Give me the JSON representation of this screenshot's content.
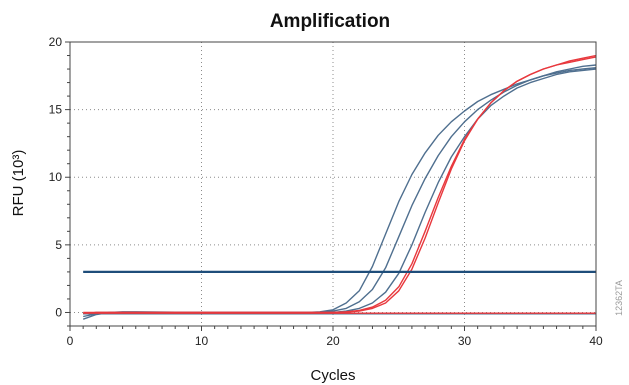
{
  "chart_data": {
    "type": "line",
    "title": "Amplification",
    "xlabel": "Cycles",
    "ylabel": "RFU (10³)",
    "xlim": [
      0,
      40
    ],
    "ylim": [
      -1,
      20
    ],
    "xticks": [
      0,
      10,
      20,
      30,
      40
    ],
    "yticks": [
      0,
      5,
      10,
      15,
      20
    ],
    "grid": "dotted",
    "threshold": 3.0,
    "series": [
      {
        "color": "#4f6f8f",
        "x": [
          1,
          2,
          3,
          4,
          5,
          10,
          15,
          18,
          19,
          20,
          21,
          22,
          23,
          24,
          25,
          26,
          27,
          28,
          29,
          30,
          31,
          32,
          33,
          34,
          35,
          36,
          37,
          38,
          39,
          40
        ],
        "y": [
          -0.5,
          -0.15,
          0.0,
          0.05,
          0.05,
          0.0,
          0.0,
          0.0,
          0.05,
          0.2,
          0.7,
          1.6,
          3.4,
          5.8,
          8.2,
          10.2,
          11.8,
          13.1,
          14.1,
          14.9,
          15.6,
          16.1,
          16.5,
          16.9,
          17.2,
          17.5,
          17.7,
          17.9,
          18.0,
          18.1
        ]
      },
      {
        "color": "#4f6f8f",
        "x": [
          1,
          2,
          3,
          4,
          5,
          10,
          15,
          19,
          20,
          21,
          22,
          23,
          24,
          25,
          26,
          27,
          28,
          29,
          30,
          31,
          32,
          33,
          34,
          35,
          36,
          37,
          38,
          39,
          40
        ],
        "y": [
          -0.3,
          -0.1,
          0.0,
          0.0,
          0.0,
          0.0,
          0.0,
          0.0,
          0.1,
          0.3,
          0.8,
          1.7,
          3.3,
          5.6,
          7.9,
          9.9,
          11.6,
          13.0,
          14.1,
          15.0,
          15.7,
          16.3,
          16.8,
          17.2,
          17.5,
          17.8,
          18.0,
          18.2,
          18.3
        ]
      },
      {
        "color": "#4f6f8f",
        "x": [
          1,
          2,
          3,
          4,
          5,
          10,
          15,
          20,
          21,
          22,
          23,
          24,
          25,
          26,
          27,
          28,
          29,
          30,
          31,
          32,
          33,
          34,
          35,
          36,
          37,
          38,
          39,
          40
        ],
        "y": [
          -0.1,
          0.0,
          0.0,
          0.0,
          0.0,
          0.0,
          0.0,
          0.0,
          0.1,
          0.3,
          0.7,
          1.5,
          2.9,
          5.0,
          7.4,
          9.6,
          11.5,
          13.0,
          14.3,
          15.3,
          16.0,
          16.6,
          17.0,
          17.3,
          17.6,
          17.8,
          17.9,
          18.0
        ]
      },
      {
        "color": "#e8383d",
        "x": [
          1,
          2,
          3,
          4,
          5,
          10,
          15,
          20,
          21,
          22,
          23,
          24,
          25,
          26,
          27,
          28,
          29,
          30,
          31,
          32,
          33,
          34,
          35,
          36,
          37,
          38,
          39,
          40
        ],
        "y": [
          -0.1,
          0.0,
          0.0,
          0.0,
          0.0,
          0.0,
          0.0,
          0.0,
          0.05,
          0.15,
          0.4,
          0.9,
          1.9,
          3.6,
          6.0,
          8.5,
          10.8,
          12.8,
          14.3,
          15.5,
          16.4,
          17.1,
          17.6,
          18.0,
          18.3,
          18.6,
          18.8,
          19.0
        ]
      },
      {
        "color": "#e8383d",
        "x": [
          1,
          2,
          3,
          4,
          5,
          10,
          15,
          20,
          21,
          22,
          23,
          24,
          25,
          26,
          27,
          28,
          29,
          30,
          31,
          32,
          33,
          34,
          35,
          36,
          37,
          38,
          39,
          40
        ],
        "y": [
          0.0,
          0.0,
          0.0,
          0.0,
          0.0,
          0.0,
          0.0,
          0.0,
          0.03,
          0.1,
          0.3,
          0.7,
          1.6,
          3.2,
          5.5,
          8.1,
          10.6,
          12.7,
          14.3,
          15.5,
          16.4,
          17.1,
          17.6,
          18.0,
          18.3,
          18.5,
          18.7,
          18.9
        ]
      },
      {
        "color": "#4f6f8f",
        "x": [
          1,
          40
        ],
        "y": [
          -0.1,
          -0.1
        ]
      },
      {
        "color": "#e8383d",
        "x": [
          1,
          40
        ],
        "y": [
          -0.05,
          -0.05
        ]
      }
    ],
    "colors": {
      "threshold": "#1e4d7a",
      "grid": "#8c8c8c",
      "axis": "#444444"
    }
  },
  "side_id": "12362TA"
}
